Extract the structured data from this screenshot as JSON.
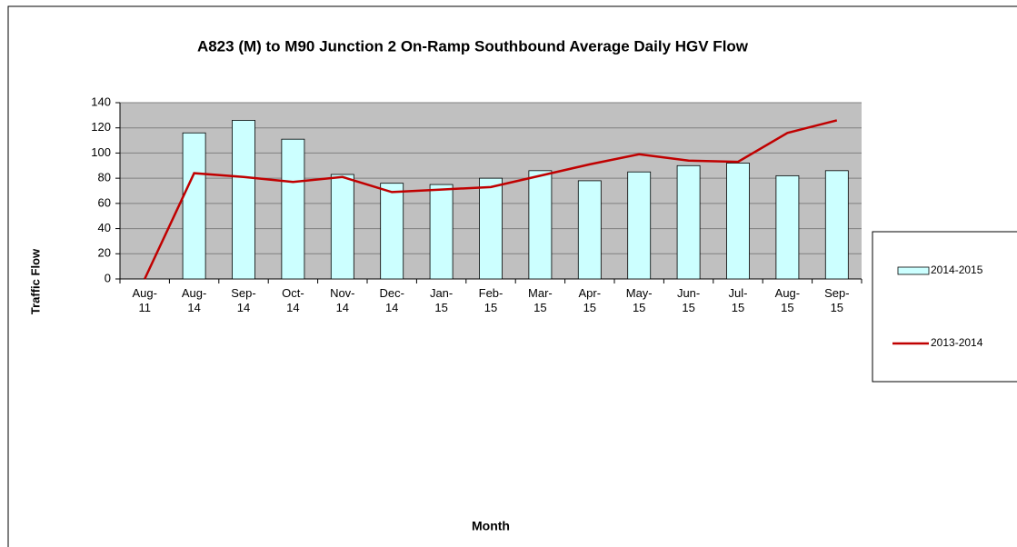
{
  "chart_data": {
    "type": "bar_line",
    "title": "A823 (M) to M90 Junction 2 On-Ramp Southbound Average Daily HGV Flow",
    "y_label": "Traffic Flow",
    "x_label": "Month",
    "categories": [
      "Aug-11",
      "Aug-14",
      "Sep-14",
      "Oct-14",
      "Nov-14",
      "Dec-14",
      "Jan-15",
      "Feb-15",
      "Mar-15",
      "Apr-15",
      "May-15",
      "Jun-15",
      "Jul-15",
      "Aug-15",
      "Sep-15"
    ],
    "series": [
      {
        "name": "2014-2015",
        "kind": "bar",
        "color": "#ccffff",
        "values": [
          null,
          116,
          126,
          111,
          83,
          76,
          75,
          80,
          86,
          78,
          85,
          90,
          92,
          82,
          86
        ]
      },
      {
        "name": "2013-2014",
        "kind": "line",
        "color": "#c00000",
        "values": [
          0,
          84,
          81,
          77,
          81,
          69,
          71,
          73,
          82,
          91,
          99,
          94,
          93,
          116,
          126
        ]
      }
    ],
    "ylim": [
      0,
      140
    ],
    "yticks": [
      0,
      20,
      40,
      60,
      80,
      100,
      120,
      140
    ],
    "grid": true,
    "legend": "right"
  }
}
